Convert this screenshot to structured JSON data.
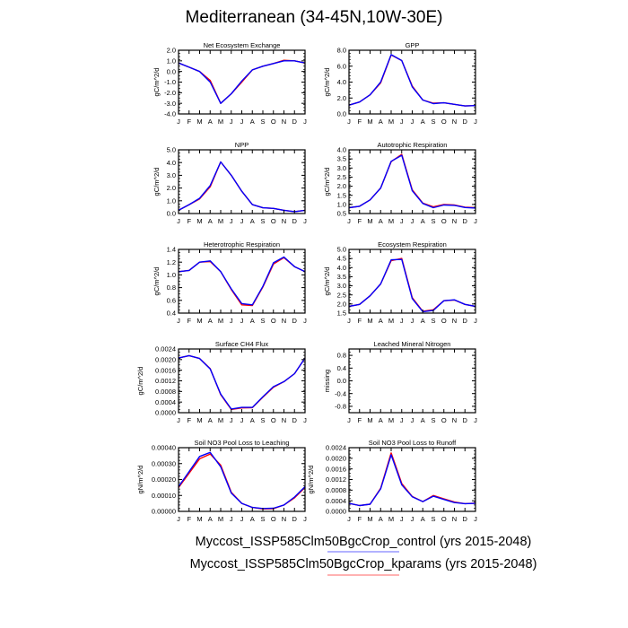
{
  "title": "Mediterranean (34-45N,10W-30E)",
  "legend": [
    {
      "label": "Myccost_ISSP585Clm50BgcCrop_control (yrs 2015-2048)",
      "color": "#0000ff"
    },
    {
      "label": "Myccost_ISSP585Clm50BgcCrop_kparams (yrs 2015-2048)",
      "color": "#ff0000"
    }
  ],
  "chart_data": [
    {
      "type": "line",
      "title": "Net Ecosystem Exchange",
      "ylabel": "gC/m^2/d",
      "xticks": [
        "J",
        "F",
        "M",
        "A",
        "M",
        "J",
        "J",
        "A",
        "S",
        "O",
        "N",
        "D",
        "J"
      ],
      "ylim": [
        -4,
        2
      ],
      "yticks": [
        -4,
        -3,
        -2,
        -1,
        0,
        1,
        2
      ],
      "ydecimals": 1,
      "series": [
        {
          "values": [
            0.8,
            0.4,
            0.0,
            -0.85,
            -3.0,
            -2.1,
            -1.0,
            0.15,
            0.5,
            0.75,
            1.05,
            1.0,
            0.8
          ]
        },
        {
          "values": [
            0.8,
            0.4,
            0.0,
            -1.0,
            -3.0,
            -2.1,
            -0.9,
            0.15,
            0.5,
            0.75,
            1.0,
            1.0,
            0.8
          ]
        }
      ]
    },
    {
      "type": "line",
      "title": "GPP",
      "ylabel": "gC/m^2/d",
      "xticks": [
        "J",
        "F",
        "M",
        "A",
        "M",
        "J",
        "J",
        "A",
        "S",
        "O",
        "N",
        "D",
        "J"
      ],
      "ylim": [
        0,
        8
      ],
      "yticks": [
        0,
        2,
        4,
        6,
        8
      ],
      "ydecimals": 1,
      "series": [
        {
          "values": [
            1.1,
            1.5,
            2.4,
            3.9,
            7.4,
            6.7,
            3.5,
            1.75,
            1.35,
            1.4,
            1.2,
            1.0,
            1.05
          ]
        },
        {
          "values": [
            1.1,
            1.5,
            2.4,
            4.0,
            7.45,
            6.7,
            3.4,
            1.75,
            1.3,
            1.4,
            1.2,
            1.0,
            1.05
          ]
        }
      ]
    },
    {
      "type": "line",
      "title": "NPP",
      "ylabel": "gC/m^2/d",
      "xticks": [
        "J",
        "F",
        "M",
        "A",
        "M",
        "J",
        "J",
        "A",
        "S",
        "O",
        "N",
        "D",
        "J"
      ],
      "ylim": [
        0,
        5
      ],
      "yticks": [
        0,
        1,
        2,
        3,
        4,
        5
      ],
      "ydecimals": 1,
      "series": [
        {
          "values": [
            0.25,
            0.7,
            1.15,
            2.1,
            4.05,
            3.0,
            1.75,
            0.7,
            0.45,
            0.4,
            0.25,
            0.15,
            0.25
          ]
        },
        {
          "values": [
            0.25,
            0.7,
            1.2,
            2.2,
            4.05,
            3.0,
            1.75,
            0.7,
            0.45,
            0.4,
            0.25,
            0.15,
            0.25
          ]
        }
      ]
    },
    {
      "type": "line",
      "title": "Autotrophic Respiration",
      "ylabel": "gC/m^2/d",
      "xticks": [
        "J",
        "F",
        "M",
        "A",
        "M",
        "J",
        "J",
        "A",
        "S",
        "O",
        "N",
        "D",
        "J"
      ],
      "ylim": [
        0.5,
        4
      ],
      "yticks": [
        0.5,
        1,
        1.5,
        2,
        2.5,
        3,
        3.5,
        4
      ],
      "ydecimals": 1,
      "series": [
        {
          "values": [
            0.82,
            0.9,
            1.25,
            1.9,
            3.35,
            3.75,
            1.8,
            1.07,
            0.87,
            1.0,
            0.97,
            0.85,
            0.82
          ]
        },
        {
          "values": [
            0.82,
            0.9,
            1.25,
            1.9,
            3.37,
            3.7,
            1.75,
            1.05,
            0.82,
            0.97,
            0.95,
            0.83,
            0.8
          ]
        }
      ]
    },
    {
      "type": "line",
      "title": "Heterotrophic Respiration",
      "ylabel": "gC/m^2/d",
      "xticks": [
        "J",
        "F",
        "M",
        "A",
        "M",
        "J",
        "J",
        "A",
        "S",
        "O",
        "N",
        "D",
        "J"
      ],
      "ylim": [
        0.4,
        1.4
      ],
      "yticks": [
        0.4,
        0.6,
        0.8,
        1.0,
        1.2,
        1.4
      ],
      "ydecimals": 1,
      "series": [
        {
          "values": [
            1.05,
            1.07,
            1.2,
            1.21,
            1.05,
            0.77,
            0.53,
            0.52,
            0.81,
            1.17,
            1.27,
            1.13,
            1.05
          ]
        },
        {
          "values": [
            1.05,
            1.07,
            1.2,
            1.22,
            1.05,
            0.78,
            0.55,
            0.53,
            0.82,
            1.19,
            1.28,
            1.13,
            1.05
          ]
        }
      ]
    },
    {
      "type": "line",
      "title": "Ecosystem Respiration",
      "ylabel": "gC/m^2/d",
      "xticks": [
        "J",
        "F",
        "M",
        "A",
        "M",
        "J",
        "J",
        "A",
        "S",
        "O",
        "N",
        "D",
        "J"
      ],
      "ylim": [
        1.5,
        5
      ],
      "yticks": [
        1.5,
        2,
        2.5,
        3,
        3.5,
        4,
        4.5,
        5
      ],
      "ydecimals": 1,
      "series": [
        {
          "values": [
            1.87,
            1.98,
            2.45,
            3.1,
            4.38,
            4.5,
            2.35,
            1.6,
            1.68,
            2.18,
            2.22,
            1.98,
            1.87
          ]
        },
        {
          "values": [
            1.87,
            1.98,
            2.45,
            3.1,
            4.43,
            4.45,
            2.3,
            1.58,
            1.65,
            2.18,
            2.23,
            1.98,
            1.87
          ]
        }
      ]
    },
    {
      "type": "line",
      "title": "Surface CH4 Flux",
      "ylabel": "gC/m^2/d",
      "xticks": [
        "J",
        "F",
        "M",
        "A",
        "M",
        "J",
        "J",
        "A",
        "S",
        "O",
        "N",
        "D",
        "J"
      ],
      "ylim": [
        0,
        0.0024
      ],
      "yticks": [
        0,
        0.0004,
        0.0008,
        0.0012,
        0.0016,
        0.002,
        0.0024
      ],
      "ydecimals": 4,
      "series": [
        {
          "values": [
            0.00206,
            0.00215,
            0.00204,
            0.00166,
            0.00068,
            0.00012,
            0.00018,
            0.00019,
            0.00058,
            0.00096,
            0.00117,
            0.00147,
            0.00206
          ]
        },
        {
          "values": [
            0.00206,
            0.00215,
            0.00204,
            0.00165,
            0.0007,
            0.00014,
            0.0002,
            0.0002,
            0.0006,
            0.00098,
            0.00117,
            0.00147,
            0.00206
          ]
        }
      ]
    },
    {
      "type": "line",
      "title": "Leached Mineral Nitrogen",
      "ylabel": "missing",
      "xticks": [
        "J",
        "F",
        "M",
        "A",
        "M",
        "J",
        "J",
        "A",
        "S",
        "O",
        "N",
        "D",
        "J"
      ],
      "ylim": [
        -1,
        1
      ],
      "yticks": [
        -0.8,
        -0.4,
        0.0,
        0.4,
        0.8
      ],
      "ydecimals": 1,
      "series": []
    },
    {
      "type": "line",
      "title": "Soil NO3 Pool Loss to Leaching",
      "ylabel": "gN/m^2/d",
      "xticks": [
        "J",
        "F",
        "M",
        "A",
        "M",
        "J",
        "J",
        "A",
        "S",
        "O",
        "N",
        "D",
        "J"
      ],
      "ylim": [
        0,
        0.0004
      ],
      "yticks": [
        0,
        0.0001,
        0.0002,
        0.0003,
        0.0004
      ],
      "ydecimals": 5,
      "series": [
        {
          "values": [
            0.00015,
            0.00024,
            0.00033,
            0.00036,
            0.00029,
            0.00012,
            5e-05,
            2.5e-05,
            1.5e-05,
            1.7e-05,
            4e-05,
            8.5e-05,
            0.00015
          ]
        },
        {
          "values": [
            0.000155,
            0.00025,
            0.000345,
            0.00037,
            0.00028,
            0.000115,
            5e-05,
            2.5e-05,
            1.8e-05,
            2e-05,
            4e-05,
            9e-05,
            0.000155
          ]
        }
      ]
    },
    {
      "type": "line",
      "title": "Soil NO3 Pool Loss to Runoff",
      "ylabel": "gN/m^2/d",
      "xticks": [
        "J",
        "F",
        "M",
        "A",
        "M",
        "J",
        "J",
        "A",
        "S",
        "O",
        "N",
        "D",
        "J"
      ],
      "ylim": [
        0,
        0.0024
      ],
      "yticks": [
        0,
        0.0004,
        0.0008,
        0.0012,
        0.0016,
        0.002,
        0.0024
      ],
      "ydecimals": 4,
      "series": [
        {
          "values": [
            0.0003,
            0.00022,
            0.00027,
            0.00087,
            0.0022,
            0.00105,
            0.00056,
            0.00037,
            0.0006,
            0.00047,
            0.00035,
            0.00029,
            0.00031
          ]
        },
        {
          "values": [
            0.0003,
            0.00022,
            0.00027,
            0.00085,
            0.00213,
            0.001,
            0.00055,
            0.00037,
            0.00057,
            0.00045,
            0.00033,
            0.00029,
            0.0003
          ]
        }
      ]
    }
  ]
}
